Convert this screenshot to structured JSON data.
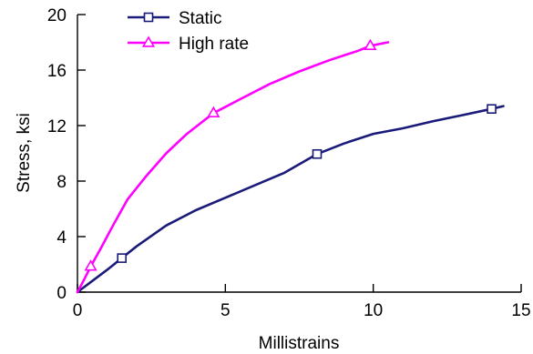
{
  "chart_data": {
    "type": "line",
    "title": "",
    "xlabel": "Millistrains",
    "ylabel": "Stress, ksi",
    "xlim": [
      0,
      15
    ],
    "ylim": [
      0,
      20
    ],
    "x_ticks": [
      0,
      5,
      10,
      15
    ],
    "y_ticks": [
      0,
      4,
      8,
      12,
      16,
      20
    ],
    "grid": false,
    "legend_position": "top-left",
    "series": [
      {
        "name": "Static",
        "color": "#1a1a7a",
        "marker": "square",
        "points": [
          [
            0,
            0
          ],
          [
            0.5,
            0.8
          ],
          [
            1.0,
            1.6
          ],
          [
            1.5,
            2.45
          ],
          [
            2.0,
            3.3
          ],
          [
            3.0,
            4.8
          ],
          [
            4.0,
            5.9
          ],
          [
            5.0,
            6.8
          ],
          [
            6.0,
            7.7
          ],
          [
            7.0,
            8.6
          ],
          [
            8.1,
            9.95
          ],
          [
            9.0,
            10.7
          ],
          [
            10.0,
            11.4
          ],
          [
            11.0,
            11.8
          ],
          [
            12.0,
            12.3
          ],
          [
            13.0,
            12.75
          ],
          [
            14.0,
            13.2
          ],
          [
            14.4,
            13.4
          ]
        ],
        "marker_points": [
          [
            1.5,
            2.45
          ],
          [
            8.1,
            9.95
          ],
          [
            14.0,
            13.2
          ]
        ]
      },
      {
        "name": "High rate",
        "color": "#ff00ff",
        "marker": "triangle",
        "points": [
          [
            0,
            0
          ],
          [
            0.2,
            0.8
          ],
          [
            0.45,
            1.85
          ],
          [
            0.8,
            3.2
          ],
          [
            1.2,
            4.8
          ],
          [
            1.7,
            6.7
          ],
          [
            2.3,
            8.3
          ],
          [
            3.0,
            10.0
          ],
          [
            3.7,
            11.4
          ],
          [
            4.6,
            12.9
          ],
          [
            5.5,
            13.9
          ],
          [
            6.5,
            15.0
          ],
          [
            7.5,
            15.9
          ],
          [
            8.5,
            16.7
          ],
          [
            9.5,
            17.4
          ],
          [
            9.9,
            17.75
          ],
          [
            10.5,
            18.0
          ]
        ],
        "marker_points": [
          [
            0.45,
            1.85
          ],
          [
            4.6,
            12.9
          ],
          [
            9.9,
            17.75
          ]
        ]
      }
    ]
  }
}
